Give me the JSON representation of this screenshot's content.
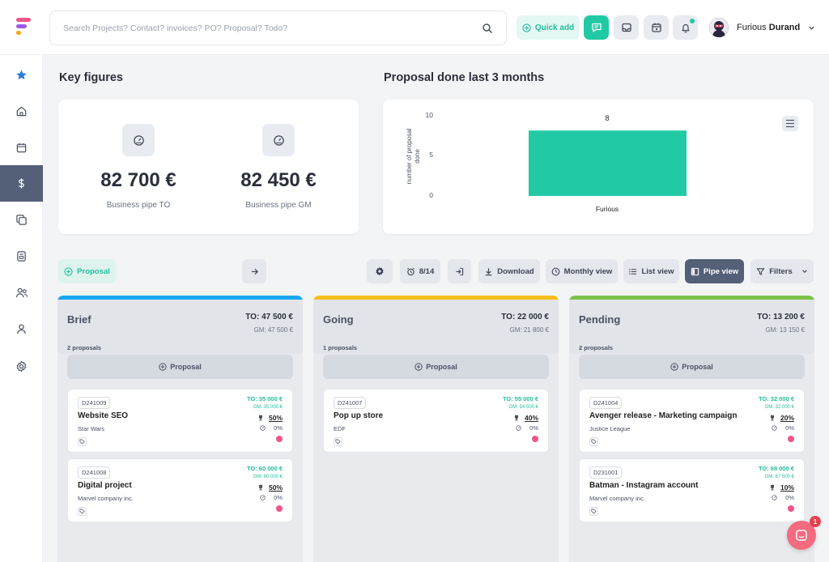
{
  "search": {
    "placeholder": "Search Projects? Contact? invoices? PO? Proposal? Todo?"
  },
  "header": {
    "quick_add": "Quick add",
    "user_first": "Furious",
    "user_last": "Durand"
  },
  "key_figures": {
    "title": "Key figures",
    "items": [
      {
        "value": "82 700 €",
        "label": "Business pipe TO"
      },
      {
        "value": "82 450 €",
        "label": "Business pipe GM"
      }
    ]
  },
  "proposal_chart": {
    "title": "Proposal done last 3 months",
    "ylabel_line1": "number of proposal",
    "ylabel_line2": "done",
    "ytick_labels": [
      "10",
      "5",
      "0"
    ],
    "bar_label": "8",
    "category": "Furious"
  },
  "chart_data": {
    "type": "bar",
    "title": "Proposal done last 3 months",
    "categories": [
      "Furious"
    ],
    "values": [
      8
    ],
    "ylabel": "number of proposal done",
    "xlabel": "",
    "ylim": [
      0,
      10
    ],
    "yticks": [
      0,
      5,
      10
    ],
    "bar_color": "#22c9a5"
  },
  "toolbar": {
    "add_proposal": "Proposal",
    "counter": "8/14",
    "download": "Download",
    "monthly_view": "Monthly view",
    "list_view": "List view",
    "pipe_view": "Pipe view",
    "filters": "Filters"
  },
  "columns": [
    {
      "title": "Brief",
      "to": "TO: 47 500 €",
      "gm": "GM: 47 500 €",
      "count": "2 proposals",
      "add": "Proposal",
      "color": "#1aa6f0",
      "cards": [
        {
          "id": "D241009",
          "title": "Website SEO",
          "client": "Star Wars",
          "to": "TO: 35 000 €",
          "gm": "GM: 35 000 €",
          "prob": "50%",
          "pct": "0%"
        },
        {
          "id": "D241008",
          "title": "Digital project",
          "client": "Marvel company inc.",
          "to": "TO: 60 000 €",
          "gm": "GM: 60 000 €",
          "prob": "50%",
          "pct": "0%"
        }
      ]
    },
    {
      "title": "Going",
      "to": "TO: 22 000 €",
      "gm": "GM: 21 800 €",
      "count": "1 proposals",
      "add": "Proposal",
      "color": "#f7be1a",
      "cards": [
        {
          "id": "D241007",
          "title": "Pop up store",
          "client": "EDF",
          "to": "TO: 55 000 €",
          "gm": "GM: 54 500 €",
          "prob": "40%",
          "pct": "0%"
        }
      ]
    },
    {
      "title": "Pending",
      "to": "TO: 13 200 €",
      "gm": "GM: 13 150 €",
      "count": "2 proposals",
      "add": "Proposal",
      "color": "#7cc24a",
      "cards": [
        {
          "id": "D241004",
          "title": "Avenger release - Marketing campaign",
          "client": "Justice League",
          "to": "TO: 32 000 €",
          "gm": "GM: 32 000 €",
          "prob": "20%",
          "pct": "0%"
        },
        {
          "id": "D231001",
          "title": "Batman - Instagram account",
          "client": "Marvel company inc.",
          "to": "TO: 68 000 €",
          "gm": "GM: 67 500 €",
          "prob": "10%",
          "pct": "0%"
        }
      ]
    }
  ],
  "chat": {
    "badge": "1"
  },
  "colors": {
    "accent": "#22c9a5",
    "sidebar_active": "#546078",
    "danger_dot": "#f0558b"
  }
}
